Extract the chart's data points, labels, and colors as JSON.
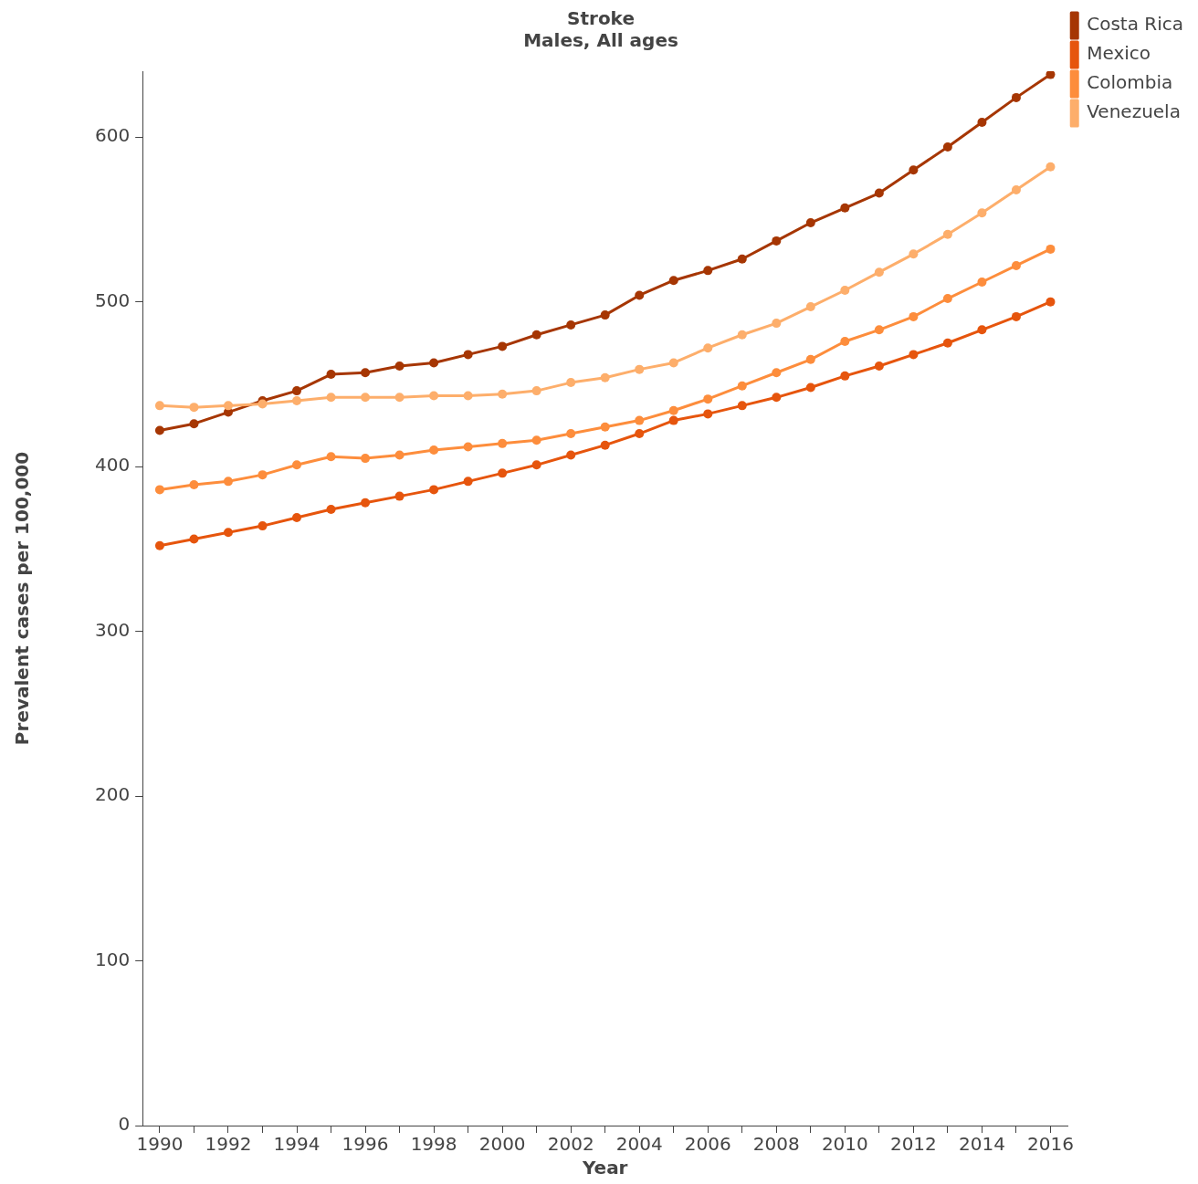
{
  "chart_data": {
    "type": "line",
    "title": "Stroke",
    "subtitle": "Males, All ages",
    "xlabel": "Year",
    "ylabel": "Prevalent cases per 100,000",
    "x": [
      1990,
      1991,
      1992,
      1993,
      1994,
      1995,
      1996,
      1997,
      1998,
      1999,
      2000,
      2001,
      2002,
      2003,
      2004,
      2005,
      2006,
      2007,
      2008,
      2009,
      2010,
      2011,
      2012,
      2013,
      2014,
      2015,
      2016
    ],
    "series": [
      {
        "name": "Costa Rica",
        "color": "#a63603",
        "values": [
          422,
          426,
          433,
          440,
          446,
          456,
          457,
          461,
          463,
          468,
          473,
          480,
          486,
          492,
          504,
          513,
          519,
          526,
          537,
          548,
          557,
          566,
          580,
          594,
          609,
          624,
          638
        ]
      },
      {
        "name": "Mexico",
        "color": "#e6550d",
        "values": [
          352,
          356,
          360,
          364,
          369,
          374,
          378,
          382,
          386,
          391,
          396,
          401,
          407,
          413,
          420,
          428,
          432,
          437,
          442,
          448,
          455,
          461,
          468,
          475,
          483,
          491,
          500
        ]
      },
      {
        "name": "Colombia",
        "color": "#fd8d3c",
        "values": [
          386,
          389,
          391,
          395,
          401,
          406,
          405,
          407,
          410,
          412,
          414,
          416,
          420,
          424,
          428,
          434,
          441,
          449,
          457,
          465,
          476,
          483,
          491,
          502,
          512,
          522,
          532
        ]
      },
      {
        "name": "Venezuela",
        "color": "#fdae6b",
        "values": [
          437,
          436,
          437,
          438,
          440,
          442,
          442,
          442,
          443,
          443,
          444,
          446,
          451,
          454,
          459,
          463,
          472,
          480,
          487,
          497,
          507,
          518,
          529,
          541,
          554,
          568,
          582
        ]
      }
    ],
    "xlim": [
      1989.5,
      2016.5
    ],
    "xticks": [
      1990,
      {
        "value": 1991,
        "label": null
      },
      1992,
      {
        "value": 1993,
        "label": null
      },
      1994,
      {
        "value": 1995,
        "label": null
      },
      1996,
      {
        "value": 1997,
        "label": null
      },
      1998,
      {
        "value": 1999,
        "label": null
      },
      2000,
      {
        "value": 2001,
        "label": null
      },
      2002,
      {
        "value": 2003,
        "label": null
      },
      2004,
      {
        "value": 2005,
        "label": null
      },
      2006,
      {
        "value": 2007,
        "label": null
      },
      2008,
      {
        "value": 2009,
        "label": null
      },
      2010,
      {
        "value": 2011,
        "label": null
      },
      2012,
      {
        "value": 2013,
        "label": null
      },
      2014,
      {
        "value": 2015,
        "label": null
      },
      2016
    ],
    "ylim": [
      0,
      640
    ],
    "yticks": [
      0,
      100,
      200,
      300,
      400,
      500,
      600
    ],
    "grid": false,
    "legend": "top right",
    "marker": "circle",
    "line_style": "solid"
  }
}
